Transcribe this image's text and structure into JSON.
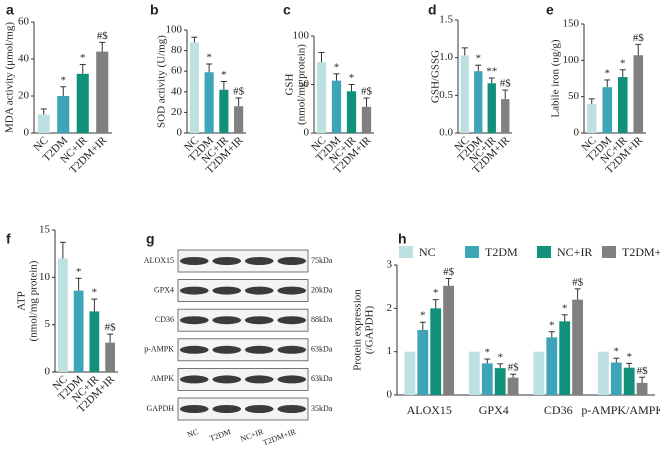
{
  "chart_data": [
    {
      "type": "bar",
      "panel": "a",
      "ylabel": [
        "MDA activity (μmol/mg)"
      ],
      "categories": [
        "NC",
        "T2DM",
        "NC+IR",
        "T2DM+IR"
      ],
      "values": [
        10,
        20,
        32,
        44
      ],
      "errors": [
        3,
        5,
        5,
        5
      ],
      "annotations": [
        null,
        "*",
        "*",
        "#$"
      ],
      "colors": [
        "#bfe0e0",
        "#3ea4b8",
        "#12917a",
        "#808080"
      ],
      "ylim": [
        0,
        60
      ],
      "yticks": [
        0,
        20,
        40,
        60
      ]
    },
    {
      "type": "bar",
      "panel": "b",
      "ylabel": [
        "SOD activity (U/mg)"
      ],
      "categories": [
        "NC",
        "T2DM",
        "NC+IR",
        "T2DM+IR"
      ],
      "values": [
        88,
        59,
        42,
        26
      ],
      "errors": [
        5,
        8,
        8,
        8
      ],
      "annotations": [
        null,
        "*",
        "*",
        "#$"
      ],
      "colors": [
        "#bfe0e0",
        "#3ea4b8",
        "#12917a",
        "#808080"
      ],
      "ylim": [
        0,
        100
      ],
      "yticks": [
        0,
        20,
        40,
        60,
        80,
        100
      ]
    },
    {
      "type": "bar",
      "panel": "c",
      "ylabel": [
        "GSH",
        "(nmol/mg protein)"
      ],
      "categories": [
        "NC",
        "T2DM",
        "NC+IR",
        "T2DM+IR"
      ],
      "values": [
        73,
        54,
        43,
        27
      ],
      "errors": [
        10,
        7,
        7,
        9
      ],
      "annotations": [
        null,
        "*",
        "*",
        "#$"
      ],
      "colors": [
        "#bfe0e0",
        "#3ea4b8",
        "#12917a",
        "#808080"
      ],
      "ylim": [
        0,
        100
      ],
      "yticks": [
        0,
        50,
        100
      ]
    },
    {
      "type": "bar",
      "panel": "d",
      "ylabel": [
        "GSH/GSSG"
      ],
      "categories": [
        "NC",
        "T2DM",
        "NC+IR",
        "T2DM+IR"
      ],
      "values": [
        1.03,
        0.82,
        0.66,
        0.45
      ],
      "errors": [
        0.1,
        0.08,
        0.07,
        0.12
      ],
      "annotations": [
        null,
        "*",
        "**",
        "#$"
      ],
      "colors": [
        "#bfe0e0",
        "#3ea4b8",
        "#12917a",
        "#808080"
      ],
      "ylim": [
        0,
        1.5
      ],
      "yticks": [
        {
          "value": 0,
          "label": "0.0"
        },
        {
          "value": 0.5,
          "label": "0.5"
        },
        {
          "value": 1,
          "label": "1.0"
        },
        {
          "value": 1.5,
          "label": "1.5"
        }
      ]
    },
    {
      "type": "bar",
      "panel": "e",
      "ylabel": [
        "Labile iron (ug/g)"
      ],
      "categories": [
        "NC",
        "T2DM",
        "NC+IR",
        "T2DM+IR"
      ],
      "values": [
        40,
        63,
        77,
        107
      ],
      "errors": [
        7,
        10,
        10,
        15
      ],
      "annotations": [
        null,
        "*",
        "*",
        "#$"
      ],
      "colors": [
        "#bfe0e0",
        "#3ea4b8",
        "#12917a",
        "#808080"
      ],
      "ylim": [
        0,
        150
      ],
      "yticks": [
        0,
        50,
        100,
        150
      ]
    },
    {
      "type": "bar",
      "panel": "f",
      "ylabel": [
        "ATP",
        "(nmol/mg protein)"
      ],
      "categories": [
        "NC",
        "T2DM",
        "NC+IR",
        "T2DM+IR"
      ],
      "values": [
        12,
        8.6,
        6.4,
        3.1
      ],
      "errors": [
        1.7,
        1.3,
        1.3,
        0.9
      ],
      "annotations": [
        null,
        "*",
        "*",
        "#$"
      ],
      "colors": [
        "#bfe0e0",
        "#3ea4b8",
        "#12917a",
        "#808080"
      ],
      "ylim": [
        0,
        15
      ],
      "yticks": [
        0,
        5,
        10,
        15
      ]
    },
    {
      "type": "blot",
      "panel": "g",
      "rows": [
        {
          "label": "ALOX15",
          "size": "75kDa"
        },
        {
          "label": "GPX4",
          "size": "20kDa"
        },
        {
          "label": "CD36",
          "size": "88kDa"
        },
        {
          "label": "p-AMPK",
          "size": "63kDa"
        },
        {
          "label": "AMPK",
          "size": "63kDa"
        },
        {
          "label": "GAPDH",
          "size": "35kDa"
        }
      ],
      "lanes": [
        "NC",
        "T2DM",
        "NC+IR",
        "T2DM+IR"
      ]
    },
    {
      "type": "grouped-bar",
      "panel": "h",
      "ylabel": [
        "Protein expression",
        "(/GAPDH)"
      ],
      "categories": [
        "ALOX15",
        "GPX4",
        "CD36",
        "p-AMPK/AMPK"
      ],
      "ylim": [
        0,
        3
      ],
      "yticks": [
        0,
        1,
        2,
        3
      ],
      "series": [
        {
          "name": "NC",
          "color": "#bfe0e0",
          "values": [
            1,
            1,
            1,
            1
          ]
        },
        {
          "name": "T2DM",
          "color": "#3ea4b8",
          "values": [
            1.5,
            0.73,
            1.33,
            0.75
          ],
          "errors": [
            0.18,
            0.1,
            0.13,
            0.1
          ],
          "annotation": "*"
        },
        {
          "name": "NC+IR",
          "color": "#12917a",
          "values": [
            2.0,
            0.62,
            1.7,
            0.63
          ],
          "errors": [
            0.2,
            0.1,
            0.15,
            0.1
          ],
          "annotation": "*"
        },
        {
          "name": "T2DM+IR",
          "color": "#808080",
          "values": [
            2.52,
            0.4,
            2.2,
            0.28
          ],
          "errors": [
            0.17,
            0.08,
            0.25,
            0.13
          ],
          "annotation": "#$"
        }
      ]
    }
  ]
}
